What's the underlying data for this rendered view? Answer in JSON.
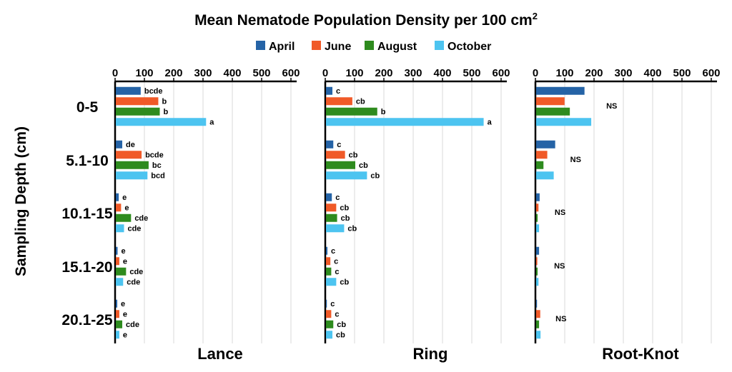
{
  "chart_data": {
    "type": "bar",
    "orientation": "horizontal",
    "title": "Mean Nematode Population Density per 100 cm",
    "title_superscript": "2",
    "ylabel": "Sampling Depth (cm)",
    "categories": [
      "0-5",
      "5.1-10",
      "10.1-15",
      "15.1-20",
      "20.1-25"
    ],
    "xlim": [
      0,
      600
    ],
    "xticks": [
      "0",
      "100",
      "200",
      "300",
      "400",
      "500",
      "600"
    ],
    "grid": true,
    "legend_position": "top-center",
    "series": [
      {
        "name": "April",
        "color": "#2563a6"
      },
      {
        "name": "June",
        "color": "#f05a28"
      },
      {
        "name": "August",
        "color": "#2e8b1e"
      },
      {
        "name": "October",
        "color": "#4dc4f0"
      }
    ],
    "panels": [
      {
        "title": "Lance",
        "values": {
          "April": [
            85,
            22,
            10,
            6,
            5
          ],
          "June": [
            145,
            88,
            18,
            12,
            12
          ],
          "August": [
            150,
            112,
            52,
            35,
            22
          ],
          "October": [
            308,
            108,
            28,
            25,
            12
          ]
        },
        "labels": {
          "April": [
            "bcde",
            "de",
            "e",
            "e",
            "e"
          ],
          "June": [
            "b",
            "bcde",
            "e",
            "e",
            "e"
          ],
          "August": [
            "b",
            "bc",
            "cde",
            "cde",
            "cde"
          ],
          "October": [
            "a",
            "bcd",
            "cde",
            "cde",
            "e"
          ]
        }
      },
      {
        "title": "Ring",
        "values": {
          "April": [
            22,
            25,
            20,
            5,
            3
          ],
          "June": [
            90,
            65,
            35,
            15,
            18
          ],
          "August": [
            175,
            100,
            38,
            18,
            25
          ],
          "October": [
            538,
            140,
            62,
            35,
            22
          ]
        },
        "labels": {
          "April": [
            "c",
            "c",
            "c",
            "c",
            "c"
          ],
          "June": [
            "cb",
            "cb",
            "cb",
            "c",
            "c"
          ],
          "August": [
            "b",
            "cb",
            "cb",
            "c",
            "cb"
          ],
          "October": [
            "a",
            "cb",
            "cb",
            "cb",
            "cb"
          ]
        }
      },
      {
        "title": "Root-Knot",
        "values": {
          "April": [
            165,
            65,
            12,
            10,
            3
          ],
          "June": [
            97,
            38,
            8,
            4,
            14
          ],
          "August": [
            115,
            25,
            5,
            5,
            10
          ],
          "October": [
            188,
            60,
            10,
            8,
            15
          ]
        },
        "labels": {
          "April": [
            "",
            "",
            "",
            "",
            ""
          ],
          "June": [
            "",
            "",
            "",
            "",
            ""
          ],
          "August": [
            "",
            "",
            "",
            "",
            ""
          ],
          "October": [
            "",
            "",
            "",
            "",
            ""
          ]
        },
        "group_labels": [
          "NS",
          "NS",
          "NS",
          "NS",
          "NS"
        ]
      }
    ]
  }
}
